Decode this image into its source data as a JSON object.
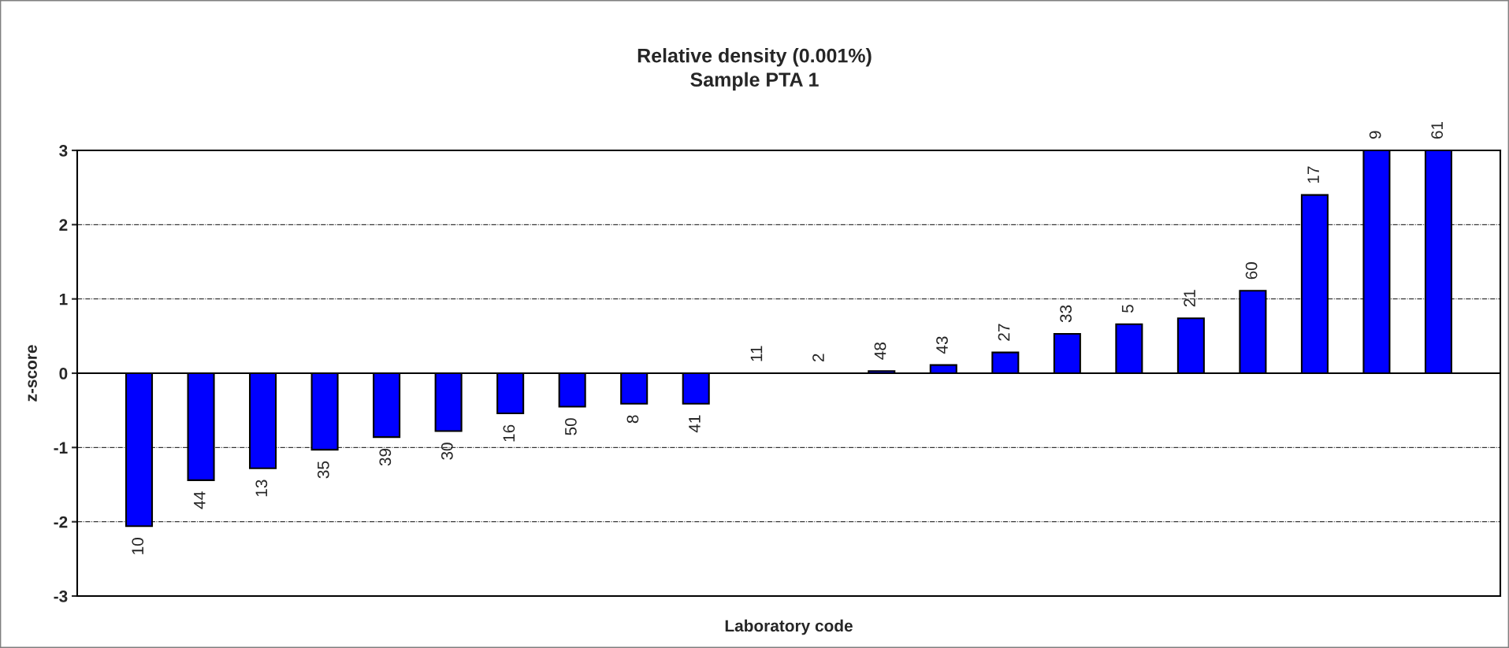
{
  "chart_data": {
    "type": "bar",
    "title": "Relative density (0.001%)\nSample PTA 1",
    "xlabel": "Laboratory code",
    "ylabel": "z-score",
    "categories": [
      "10",
      "44",
      "13",
      "35",
      "39",
      "30",
      "16",
      "50",
      "8",
      "41",
      "11",
      "2",
      "48",
      "43",
      "27",
      "33",
      "5",
      "21",
      "60",
      "17",
      "9",
      "61"
    ],
    "values": [
      -2.06,
      -1.44,
      -1.28,
      -1.03,
      -0.86,
      -0.78,
      -0.54,
      -0.45,
      -0.41,
      -0.41,
      0,
      0,
      0.03,
      0.11,
      0.28,
      0.53,
      0.66,
      0.74,
      1.11,
      2.4,
      3,
      3
    ],
    "color": "#0000ff",
    "ylim": [
      -3,
      3
    ],
    "yticks": [
      -3,
      -2,
      -1,
      0,
      1,
      2,
      3
    ],
    "grid": "y",
    "legend": false
  }
}
